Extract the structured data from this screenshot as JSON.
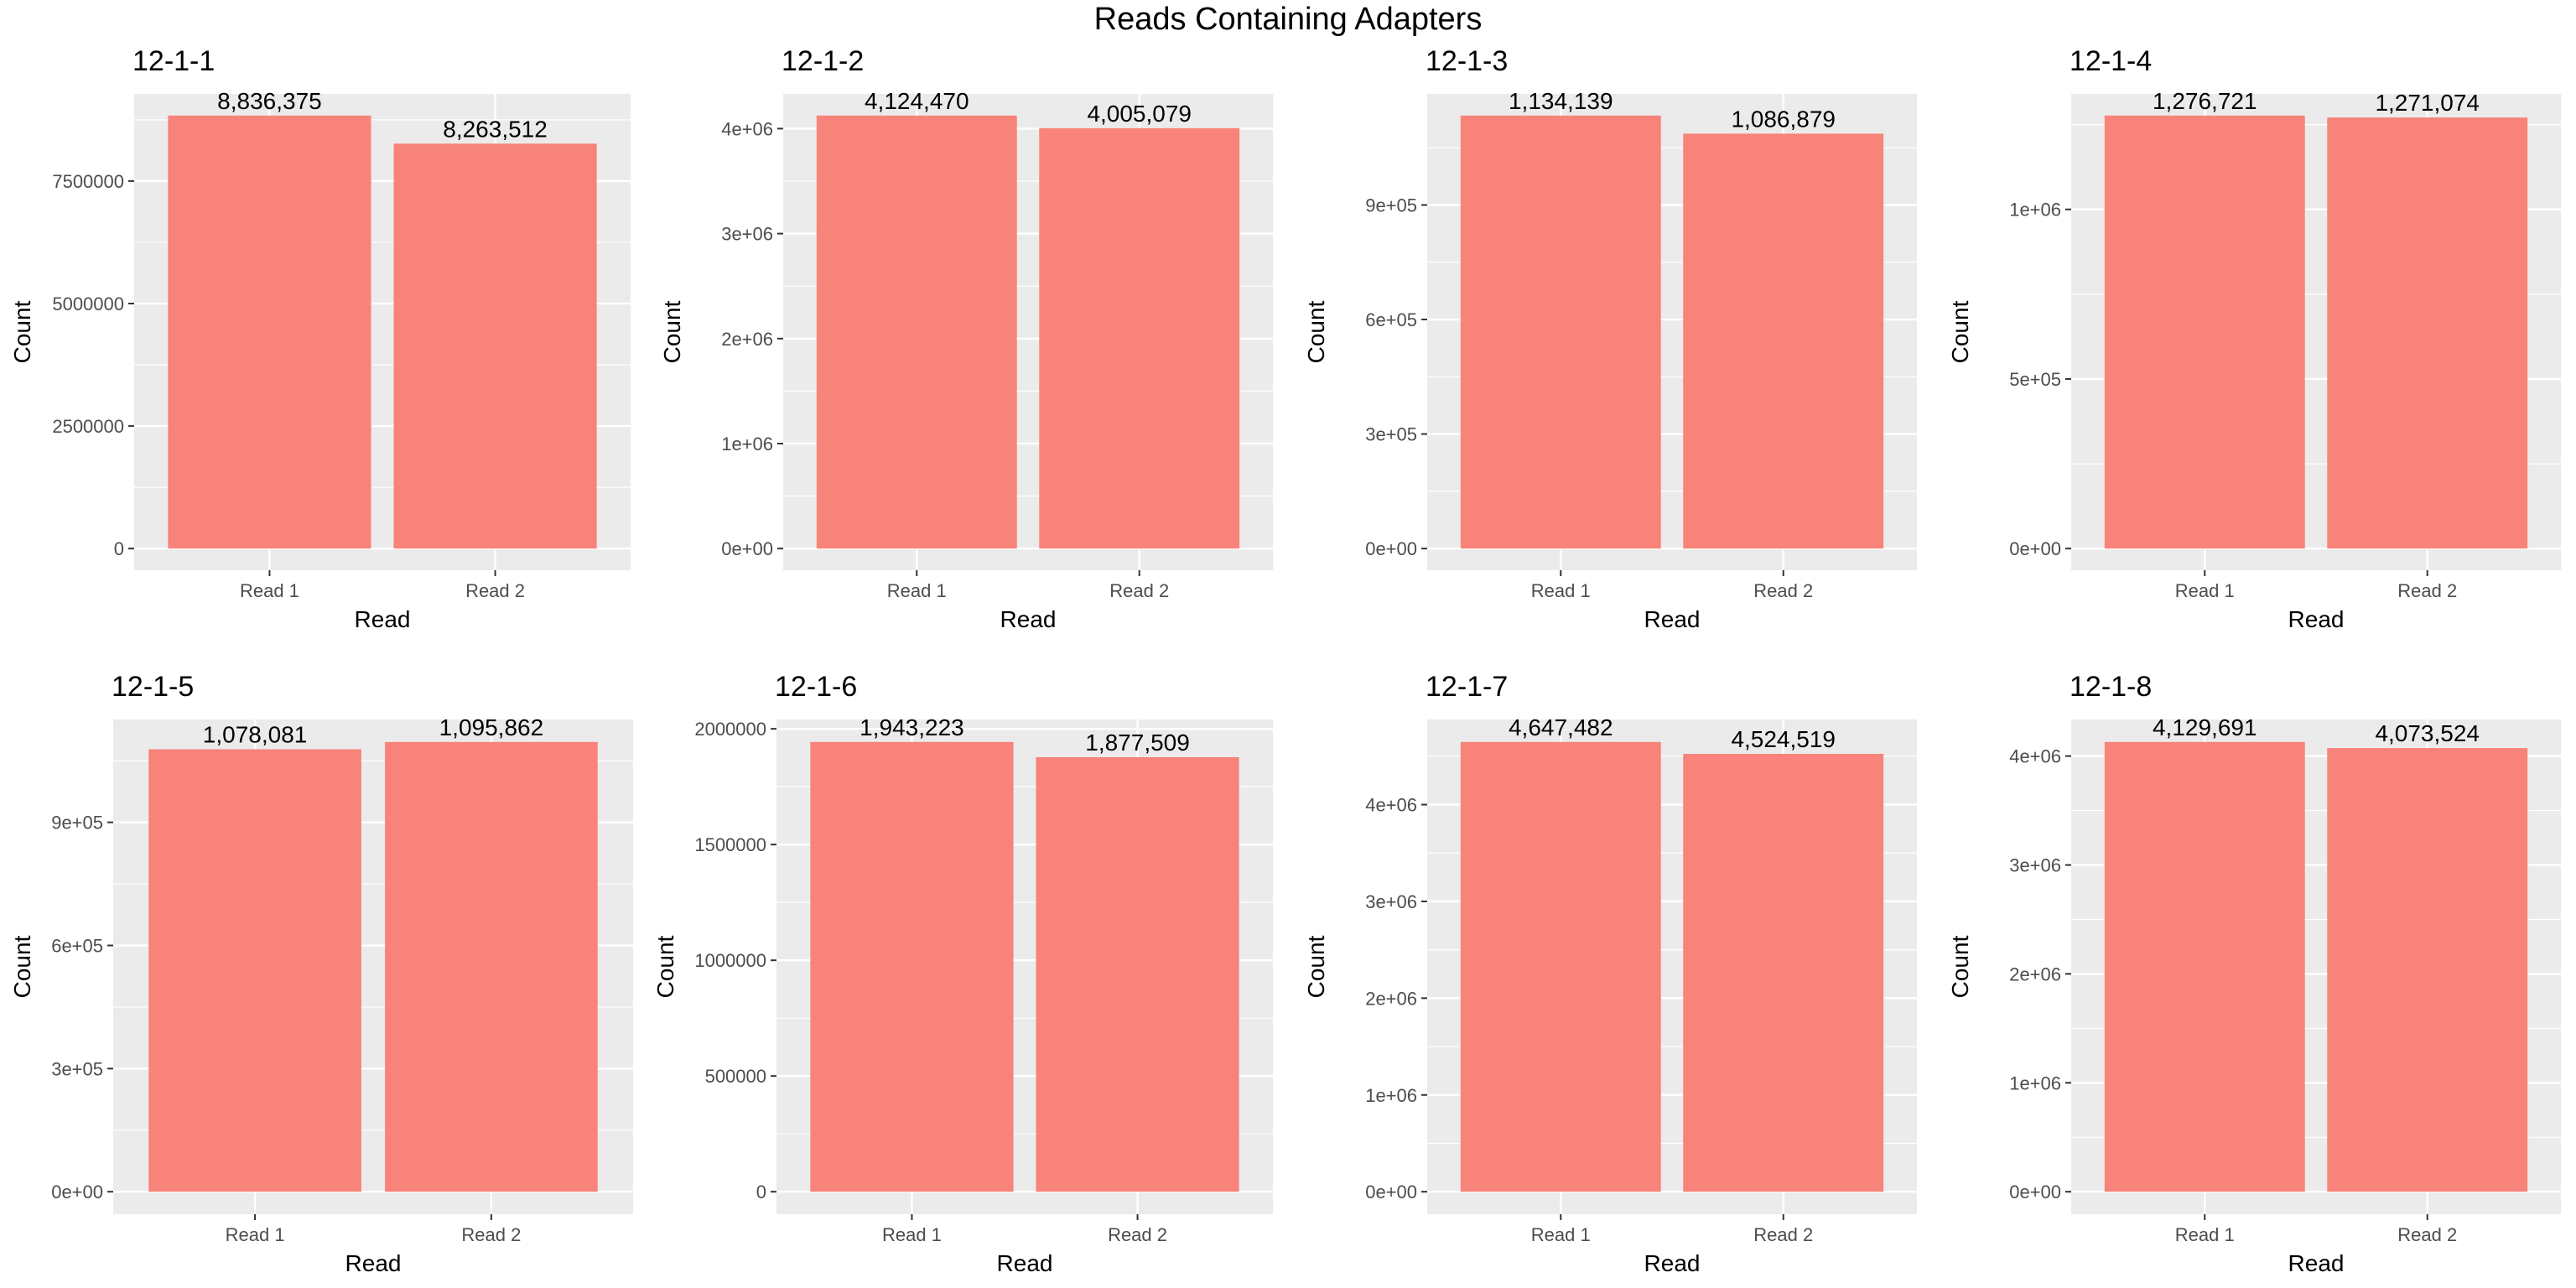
{
  "figure": {
    "title": "Reads Containing Adapters"
  },
  "colors": {
    "bar": "#F8837A",
    "panel_bg": "#EBEBEB",
    "grid": "#FFFFFF",
    "text": "#000000",
    "tick_text": "#4D4D4D"
  },
  "chart_data": [
    {
      "type": "bar",
      "title": "12-1-1",
      "xlabel": "Read",
      "ylabel": "Count",
      "categories": [
        "Read 1",
        "Read 2"
      ],
      "values": [
        8836375,
        8263512
      ],
      "value_labels": [
        "8,836,375",
        "8,263,512"
      ],
      "yticks": [
        0,
        2500000,
        5000000,
        7500000
      ],
      "ytick_labels": [
        "0",
        "2500000",
        "5000000",
        "7500000"
      ],
      "ylim": [
        -441818.75,
        9278193.75
      ]
    },
    {
      "type": "bar",
      "title": "12-1-2",
      "xlabel": "Read",
      "ylabel": "Count",
      "categories": [
        "Read 1",
        "Read 2"
      ],
      "values": [
        4124470,
        4005079
      ],
      "value_labels": [
        "4,124,470",
        "4,005,079"
      ],
      "yticks": [
        0,
        1000000,
        2000000,
        3000000,
        4000000
      ],
      "ytick_labels": [
        "0e+00",
        "1e+06",
        "2e+06",
        "3e+06",
        "4e+06"
      ],
      "ylim": [
        -206223.5,
        4330693.5
      ]
    },
    {
      "type": "bar",
      "title": "12-1-3",
      "xlabel": "Read",
      "ylabel": "Count",
      "categories": [
        "Read 1",
        "Read 2"
      ],
      "values": [
        1134139,
        1086879
      ],
      "value_labels": [
        "1,134,139",
        "1,086,879"
      ],
      "yticks": [
        0,
        300000,
        600000,
        900000
      ],
      "ytick_labels": [
        "0e+00",
        "3e+05",
        "6e+05",
        "9e+05"
      ],
      "ylim": [
        -56706.95,
        1190845.95
      ]
    },
    {
      "type": "bar",
      "title": "12-1-4",
      "xlabel": "Read",
      "ylabel": "Count",
      "categories": [
        "Read 1",
        "Read 2"
      ],
      "values": [
        1276721,
        1271074
      ],
      "value_labels": [
        "1,276,721",
        "1,271,074"
      ],
      "yticks": [
        0,
        500000,
        1000000
      ],
      "ytick_labels": [
        "0e+00",
        "5e+05",
        "1e+06"
      ],
      "ylim": [
        -63836.05,
        1340557.05
      ]
    },
    {
      "type": "bar",
      "title": "12-1-5",
      "xlabel": "Read",
      "ylabel": "Count",
      "categories": [
        "Read 1",
        "Read 2"
      ],
      "values": [
        1078081,
        1095862
      ],
      "value_labels": [
        "1,078,081",
        "1,095,862"
      ],
      "yticks": [
        0,
        300000,
        600000,
        900000
      ],
      "ytick_labels": [
        "0e+00",
        "3e+05",
        "6e+05",
        "9e+05"
      ],
      "ylim": [
        -54793.1,
        1150655.1
      ]
    },
    {
      "type": "bar",
      "title": "12-1-6",
      "xlabel": "Read",
      "ylabel": "Count",
      "categories": [
        "Read 1",
        "Read 2"
      ],
      "values": [
        1943223,
        1877509
      ],
      "value_labels": [
        "1,943,223",
        "1,877,509"
      ],
      "yticks": [
        0,
        500000,
        1000000,
        1500000,
        2000000
      ],
      "ytick_labels": [
        "0",
        "500000",
        "1000000",
        "1500000",
        "2000000"
      ],
      "ylim": [
        -97161.15,
        2040384.15
      ]
    },
    {
      "type": "bar",
      "title": "12-1-7",
      "xlabel": "Read",
      "ylabel": "Count",
      "categories": [
        "Read 1",
        "Read 2"
      ],
      "values": [
        4647482,
        4524519
      ],
      "value_labels": [
        "4,647,482",
        "4,524,519"
      ],
      "yticks": [
        0,
        1000000,
        2000000,
        3000000,
        4000000
      ],
      "ytick_labels": [
        "0e+00",
        "1e+06",
        "2e+06",
        "3e+06",
        "4e+06"
      ],
      "ylim": [
        -232374.1,
        4879856.1
      ]
    },
    {
      "type": "bar",
      "title": "12-1-8",
      "xlabel": "Read",
      "ylabel": "Count",
      "categories": [
        "Read 1",
        "Read 2"
      ],
      "values": [
        4129691,
        4073524
      ],
      "value_labels": [
        "4,129,691",
        "4,073,524"
      ],
      "yticks": [
        0,
        1000000,
        2000000,
        3000000,
        4000000
      ],
      "ytick_labels": [
        "0e+00",
        "1e+06",
        "2e+06",
        "3e+06",
        "4e+06"
      ],
      "ylim": [
        -206484.55,
        4336175.55
      ]
    }
  ]
}
